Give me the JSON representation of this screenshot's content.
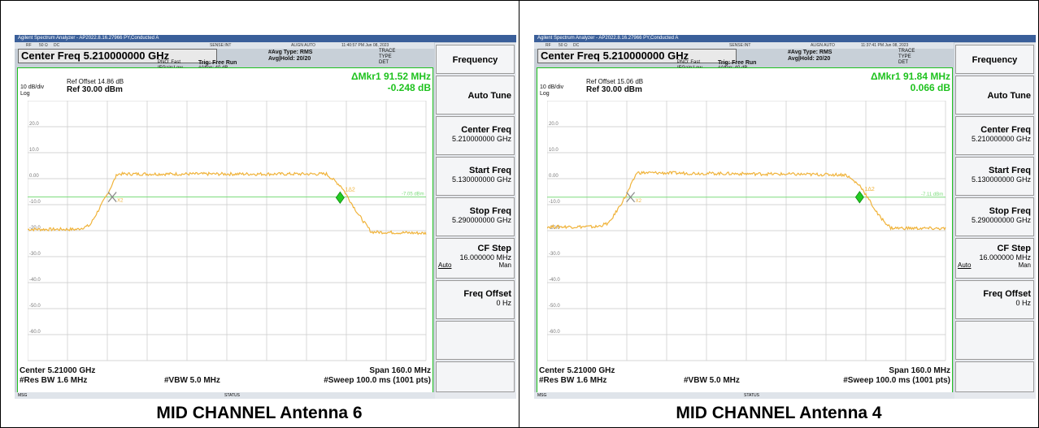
{
  "panels": [
    {
      "caption": "MID CHANNEL Antenna 6",
      "window_title": "Agilent Spectrum Analyzer - AP2022.8.16.27966 PY,Conducted A",
      "status_row": {
        "rf": "RF",
        "ohm": "50 Ω",
        "dc": "DC",
        "sense": "SENSE:INT",
        "align": "ALIGN AUTO",
        "timestamp": "11:40:57 PM Jun 08, 2023"
      },
      "center_freq_box": "Center Freq 5.210000000 GHz",
      "pno": "PNO: Fast",
      "ifgain": "IFGain:Low",
      "trig": "Trig: Free Run",
      "atten": "#Atten: 40 dB",
      "avg_type": "#Avg Type: RMS",
      "avg_hold": "Avg|Hold: 20/20",
      "trace_label": "TRACE",
      "type_label": "TYPE",
      "det_label": "DET",
      "ref_offset": "Ref Offset 14.86 dB",
      "scale": "10 dB/div",
      "ref_level": "Ref 30.00 dBm",
      "log": "Log",
      "marker_delta": "ΔMkr1 91.52 MHz",
      "marker_value": "-0.248 dB",
      "marker_label_a": "1Δ2",
      "marker_label_b": "X2",
      "threshold_label": "-7.05 dBm",
      "y_ticks": [
        "20.0",
        "10.0",
        "0.00",
        "-10.0",
        "-20.0",
        "-30.0",
        "-40.0",
        "-50.0",
        "-60.0"
      ],
      "center_bottom": "Center 5.21000 GHz",
      "res_bw": "#Res BW 1.6 MHz",
      "vbw": "#VBW 5.0 MHz",
      "span": "Span 160.0 MHz",
      "sweep": "#Sweep  100.0 ms (1001 pts)",
      "msg": "MSG",
      "status": "STATUS",
      "softkeys": {
        "frequency": "Frequency",
        "auto_tune": "Auto Tune",
        "center_freq_label": "Center Freq",
        "center_freq_value": "5.210000000 GHz",
        "start_freq_label": "Start Freq",
        "start_freq_value": "5.130000000 GHz",
        "stop_freq_label": "Stop Freq",
        "stop_freq_value": "5.290000000 GHz",
        "cf_step_label": "CF Step",
        "cf_step_value": "16.000000 MHz",
        "auto": "Auto",
        "man": "Man",
        "freq_offset_label": "Freq Offset",
        "freq_offset_value": "0 Hz"
      }
    },
    {
      "caption": "MID CHANNEL Antenna 4",
      "window_title": "Agilent Spectrum Analyzer - AP2022.8.16.27966 PY,Conducted A",
      "status_row": {
        "rf": "RF",
        "ohm": "50 Ω",
        "dc": "DC",
        "sense": "SENSE:INT",
        "align": "ALIGN AUTO",
        "timestamp": "11:37:41 PM Jun 08, 2023"
      },
      "center_freq_box": "Center Freq 5.210000000 GHz",
      "pno": "PNO: Fast",
      "ifgain": "IFGain:Low",
      "trig": "Trig: Free Run",
      "atten": "#Atten: 40 dB",
      "avg_type": "#Avg Type: RMS",
      "avg_hold": "Avg|Hold: 20/20",
      "trace_label": "TRACE",
      "type_label": "TYPE",
      "det_label": "DET",
      "ref_offset": "Ref Offset 15.06 dB",
      "scale": "10 dB/div",
      "ref_level": "Ref 30.00 dBm",
      "log": "Log",
      "marker_delta": "ΔMkr1 91.84 MHz",
      "marker_value": "0.066 dB",
      "marker_label_a": "1Δ2",
      "marker_label_b": "X2",
      "threshold_label": "-7.11 dBm",
      "y_ticks": [
        "20.0",
        "10.0",
        "0.00",
        "-10.0",
        "-20.0",
        "-30.0",
        "-40.0",
        "-50.0",
        "-60.0"
      ],
      "center_bottom": "Center 5.21000 GHz",
      "res_bw": "#Res BW 1.6 MHz",
      "vbw": "#VBW 5.0 MHz",
      "span": "Span 160.0 MHz",
      "sweep": "#Sweep  100.0 ms (1001 pts)",
      "msg": "MSG",
      "status": "STATUS",
      "softkeys": {
        "frequency": "Frequency",
        "auto_tune": "Auto Tune",
        "center_freq_label": "Center Freq",
        "center_freq_value": "5.210000000 GHz",
        "start_freq_label": "Start Freq",
        "start_freq_value": "5.130000000 GHz",
        "stop_freq_label": "Stop Freq",
        "stop_freq_value": "5.290000000 GHz",
        "cf_step_label": "CF Step",
        "cf_step_value": "16.000000 MHz",
        "auto": "Auto",
        "man": "Man",
        "freq_offset_label": "Freq Offset",
        "freq_offset_value": "0 Hz"
      }
    }
  ],
  "colors": {
    "trace": "#f0b33a",
    "graticule": "#1ec21e",
    "marker": "#22cc22",
    "threshold": "#7ddc7d",
    "titlebar": "#3a5f9a"
  },
  "chart_data": [
    {
      "type": "line",
      "title": "",
      "xlabel": "",
      "ylabel": "",
      "x_unit": "GHz",
      "y_unit": "dBm",
      "xlim": [
        5.13,
        5.29
      ],
      "ylim": [
        -70,
        30
      ],
      "grid": true,
      "threshold_dbm": -7.05,
      "series": [
        {
          "x": [
            5.13,
            5.15,
            5.155,
            5.162,
            5.166,
            5.25,
            5.256,
            5.263,
            5.268,
            5.29
          ],
          "y": [
            -19.5,
            -19.5,
            -18,
            -6,
            1.8,
            1.8,
            -3,
            -14,
            -20.5,
            -21
          ]
        }
      ],
      "markers": [
        {
          "x": 5.164,
          "y": -7.05
        },
        {
          "x": 5.2555,
          "y": -7.3
        }
      ]
    },
    {
      "type": "line",
      "title": "",
      "xlabel": "",
      "ylabel": "",
      "x_unit": "GHz",
      "y_unit": "dBm",
      "xlim": [
        5.13,
        5.29
      ],
      "ylim": [
        -70,
        30
      ],
      "grid": true,
      "threshold_dbm": -7.11,
      "series": [
        {
          "x": [
            5.13,
            5.15,
            5.155,
            5.162,
            5.166,
            5.25,
            5.256,
            5.263,
            5.268,
            5.29
          ],
          "y": [
            -18.5,
            -18.5,
            -17,
            -6,
            2.3,
            1.5,
            -3,
            -14,
            -19,
            -19.2
          ]
        }
      ],
      "markers": [
        {
          "x": 5.1635,
          "y": -7.11
        },
        {
          "x": 5.2555,
          "y": -7.11
        }
      ]
    }
  ]
}
